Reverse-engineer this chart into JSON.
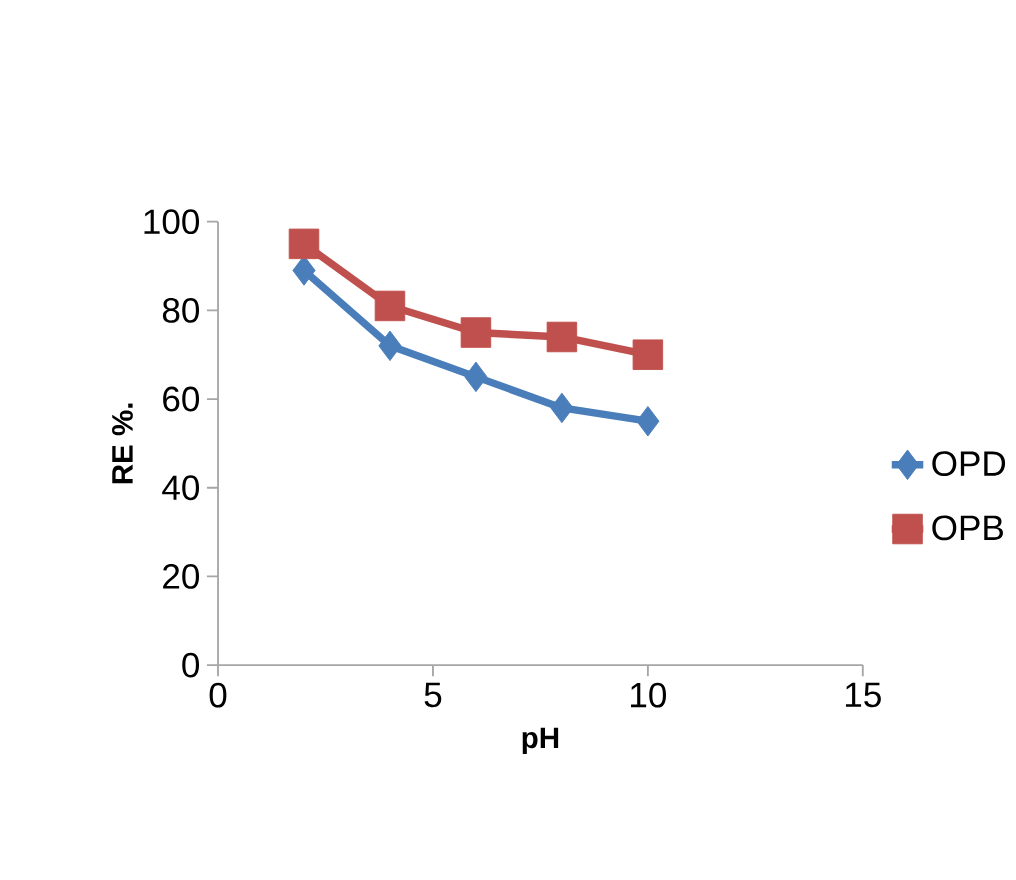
{
  "chart_data": {
    "type": "line",
    "xlabel": "pH",
    "ylabel": "RE %.",
    "xlim": [
      0,
      15
    ],
    "xticks": [
      0,
      5,
      10,
      15
    ],
    "ylim": [
      0,
      100
    ],
    "yticks": [
      0,
      20,
      40,
      60,
      80,
      100
    ],
    "legend": "right",
    "grid": false,
    "line_style": "solid",
    "series": [
      {
        "name": "OPD",
        "color": "#4a7ebb",
        "marker": "diamond",
        "x": [
          2,
          4,
          6,
          8,
          10
        ],
        "values": [
          89,
          72,
          65,
          58,
          55
        ]
      },
      {
        "name": "OPB",
        "color": "#c0504d",
        "marker": "square",
        "x": [
          2,
          4,
          6,
          8,
          10
        ],
        "values": [
          95,
          81,
          75,
          74,
          70
        ]
      }
    ]
  }
}
